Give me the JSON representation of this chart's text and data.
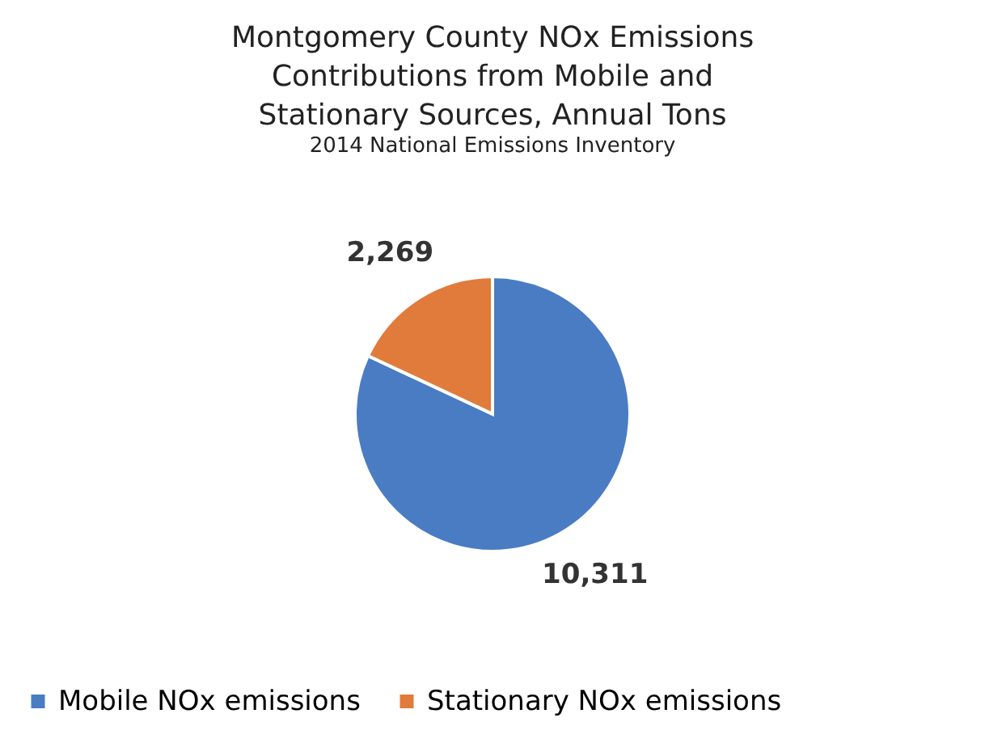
{
  "chart_data": {
    "type": "pie",
    "title": "Montgomery County NOx Emissions Contributions from Mobile and Stationary Sources, Annual Tons",
    "subtitle": "2014 National Emissions Inventory",
    "categories": [
      "Mobile NOx emissions",
      "Stationary NOx emissions"
    ],
    "values": [
      10311,
      2269
    ],
    "colors": [
      "#4a7cc4",
      "#e07b3c"
    ],
    "value_labels": [
      "10,311",
      "2,269"
    ],
    "legend": "bottom"
  }
}
